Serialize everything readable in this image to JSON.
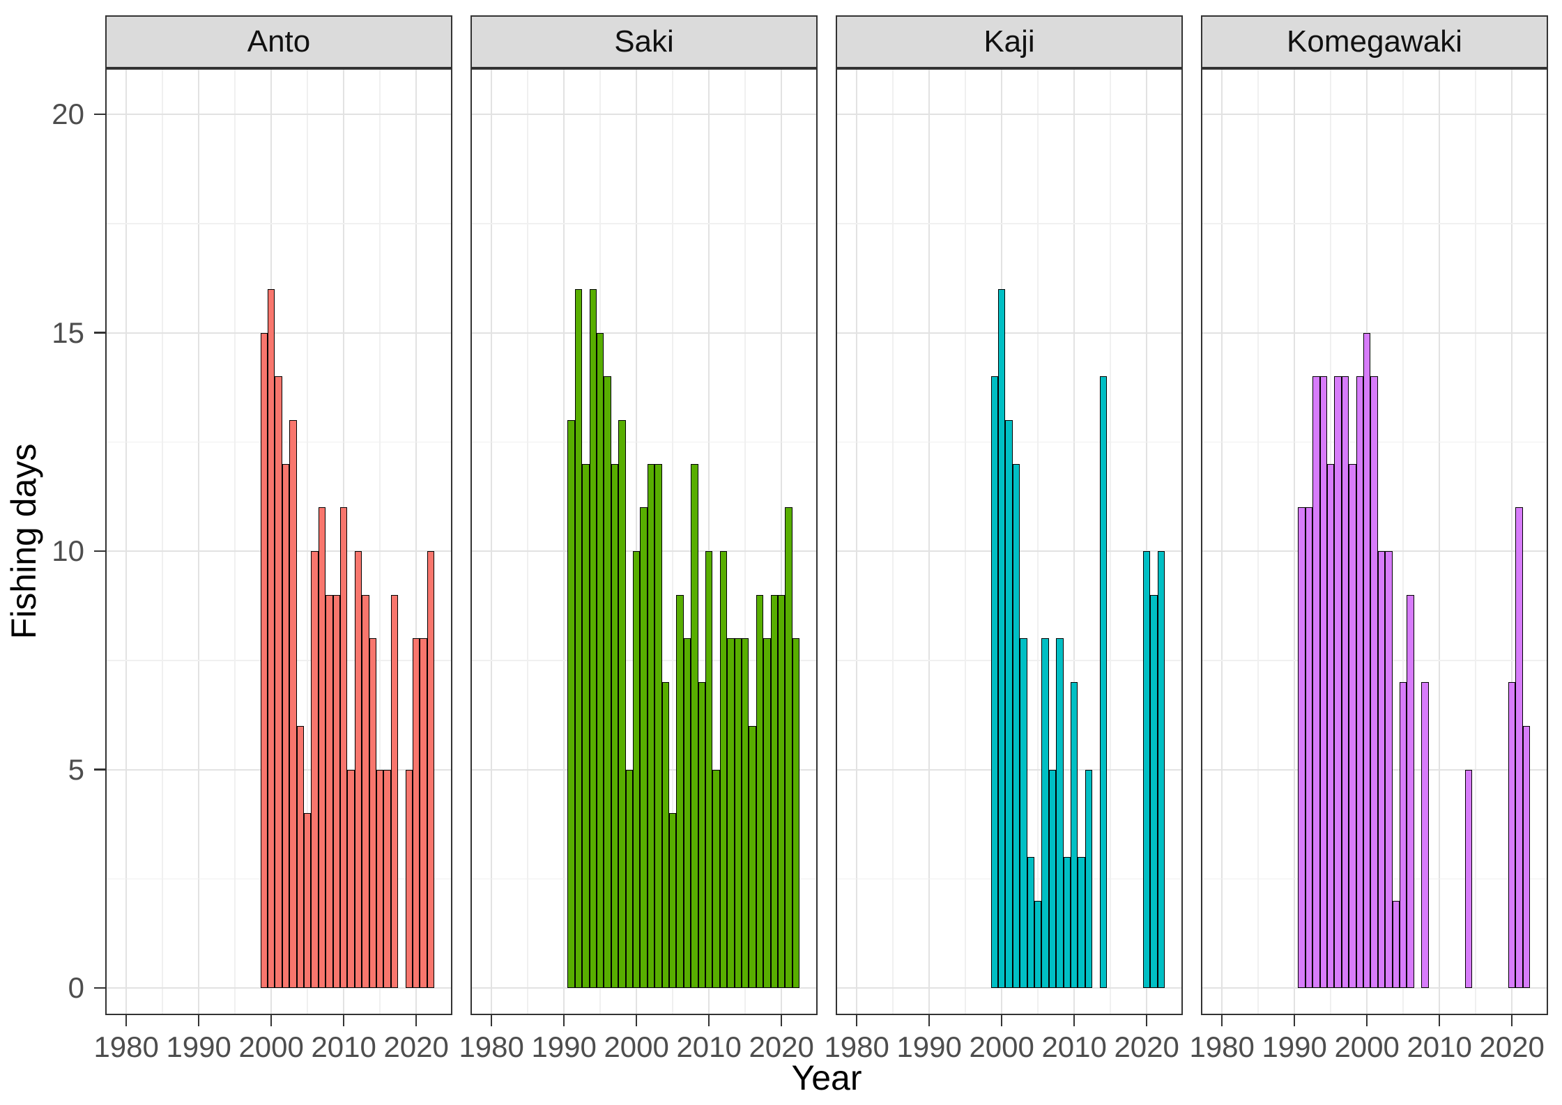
{
  "figure_title": "",
  "chart_data": {
    "type": "bar",
    "title": "",
    "xlabel": "Year",
    "ylabel": "Fishing days",
    "ylim": [
      0,
      20
    ],
    "xlim": [
      1977,
      2025
    ],
    "x_ticks": [
      1980,
      1990,
      2000,
      2010,
      2020
    ],
    "y_ticks": [
      0,
      5,
      10,
      15,
      20
    ],
    "y_minor_gridlines": [
      2.5,
      7.5,
      12.5,
      17.5
    ],
    "x_minor_gridlines": [
      1975,
      1985,
      1995,
      2005,
      2015,
      2025
    ],
    "grid": true,
    "legend": false,
    "facets": [
      {
        "name": "Anto",
        "color": "#F8766D",
        "bars": [
          {
            "year": 1999,
            "value": 15
          },
          {
            "year": 2000,
            "value": 16
          },
          {
            "year": 2001,
            "value": 14
          },
          {
            "year": 2002,
            "value": 12
          },
          {
            "year": 2003,
            "value": 13
          },
          {
            "year": 2004,
            "value": 6
          },
          {
            "year": 2005,
            "value": 4
          },
          {
            "year": 2006,
            "value": 10
          },
          {
            "year": 2007,
            "value": 11
          },
          {
            "year": 2008,
            "value": 9
          },
          {
            "year": 2009,
            "value": 9
          },
          {
            "year": 2010,
            "value": 11
          },
          {
            "year": 2011,
            "value": 5
          },
          {
            "year": 2012,
            "value": 10
          },
          {
            "year": 2013,
            "value": 9
          },
          {
            "year": 2014,
            "value": 8
          },
          {
            "year": 2015,
            "value": 5
          },
          {
            "year": 2016,
            "value": 5
          },
          {
            "year": 2017,
            "value": 9
          },
          {
            "year": 2019,
            "value": 5
          },
          {
            "year": 2020,
            "value": 8
          },
          {
            "year": 2021,
            "value": 8
          },
          {
            "year": 2022,
            "value": 10
          }
        ]
      },
      {
        "name": "Saki",
        "color": "#58AE00",
        "bars": [
          {
            "year": 1991,
            "value": 13
          },
          {
            "year": 1992,
            "value": 16
          },
          {
            "year": 1993,
            "value": 12
          },
          {
            "year": 1994,
            "value": 16
          },
          {
            "year": 1995,
            "value": 15
          },
          {
            "year": 1996,
            "value": 14
          },
          {
            "year": 1997,
            "value": 12
          },
          {
            "year": 1998,
            "value": 13
          },
          {
            "year": 1999,
            "value": 5
          },
          {
            "year": 2000,
            "value": 10
          },
          {
            "year": 2001,
            "value": 11
          },
          {
            "year": 2002,
            "value": 12
          },
          {
            "year": 2003,
            "value": 12
          },
          {
            "year": 2004,
            "value": 7
          },
          {
            "year": 2005,
            "value": 4
          },
          {
            "year": 2006,
            "value": 9
          },
          {
            "year": 2007,
            "value": 8
          },
          {
            "year": 2008,
            "value": 12
          },
          {
            "year": 2009,
            "value": 7
          },
          {
            "year": 2010,
            "value": 10
          },
          {
            "year": 2011,
            "value": 5
          },
          {
            "year": 2012,
            "value": 10
          },
          {
            "year": 2013,
            "value": 8
          },
          {
            "year": 2014,
            "value": 8
          },
          {
            "year": 2015,
            "value": 8
          },
          {
            "year": 2016,
            "value": 6
          },
          {
            "year": 2017,
            "value": 9
          },
          {
            "year": 2018,
            "value": 8
          },
          {
            "year": 2019,
            "value": 9
          },
          {
            "year": 2020,
            "value": 9
          },
          {
            "year": 2021,
            "value": 11
          },
          {
            "year": 2022,
            "value": 8
          }
        ]
      },
      {
        "name": "Kaji",
        "color": "#00BFC4",
        "bars": [
          {
            "year": 1999,
            "value": 14
          },
          {
            "year": 2000,
            "value": 16
          },
          {
            "year": 2001,
            "value": 13
          },
          {
            "year": 2002,
            "value": 12
          },
          {
            "year": 2003,
            "value": 8
          },
          {
            "year": 2004,
            "value": 3
          },
          {
            "year": 2005,
            "value": 2
          },
          {
            "year": 2006,
            "value": 8
          },
          {
            "year": 2007,
            "value": 5
          },
          {
            "year": 2008,
            "value": 8
          },
          {
            "year": 2009,
            "value": 3
          },
          {
            "year": 2010,
            "value": 7
          },
          {
            "year": 2011,
            "value": 3
          },
          {
            "year": 2012,
            "value": 5
          },
          {
            "year": 2014,
            "value": 14
          },
          {
            "year": 2020,
            "value": 10
          },
          {
            "year": 2021,
            "value": 9
          },
          {
            "year": 2022,
            "value": 10
          }
        ]
      },
      {
        "name": "Komegawaki",
        "color": "#D77CFA",
        "bars": [
          {
            "year": 1991,
            "value": 11
          },
          {
            "year": 1992,
            "value": 11
          },
          {
            "year": 1993,
            "value": 14
          },
          {
            "year": 1994,
            "value": 14
          },
          {
            "year": 1995,
            "value": 12
          },
          {
            "year": 1996,
            "value": 14
          },
          {
            "year": 1997,
            "value": 14
          },
          {
            "year": 1998,
            "value": 12
          },
          {
            "year": 1999,
            "value": 14
          },
          {
            "year": 2000,
            "value": 15
          },
          {
            "year": 2001,
            "value": 14
          },
          {
            "year": 2002,
            "value": 10
          },
          {
            "year": 2003,
            "value": 10
          },
          {
            "year": 2004,
            "value": 2
          },
          {
            "year": 2005,
            "value": 7
          },
          {
            "year": 2006,
            "value": 9
          },
          {
            "year": 2008,
            "value": 7
          },
          {
            "year": 2014,
            "value": 5
          },
          {
            "year": 2020,
            "value": 7
          },
          {
            "year": 2021,
            "value": 11
          },
          {
            "year": 2022,
            "value": 6
          }
        ]
      }
    ],
    "style": {
      "strip_bg": "#DBDBDB",
      "strip_text": "#111111",
      "panel_border": "#333333",
      "bar_outline": "#000000",
      "grid_major": "#E2E2E2",
      "grid_minor": "#F0F0F0",
      "axis_text": "#4D4D4D",
      "axis_title_text": "#000000"
    }
  }
}
